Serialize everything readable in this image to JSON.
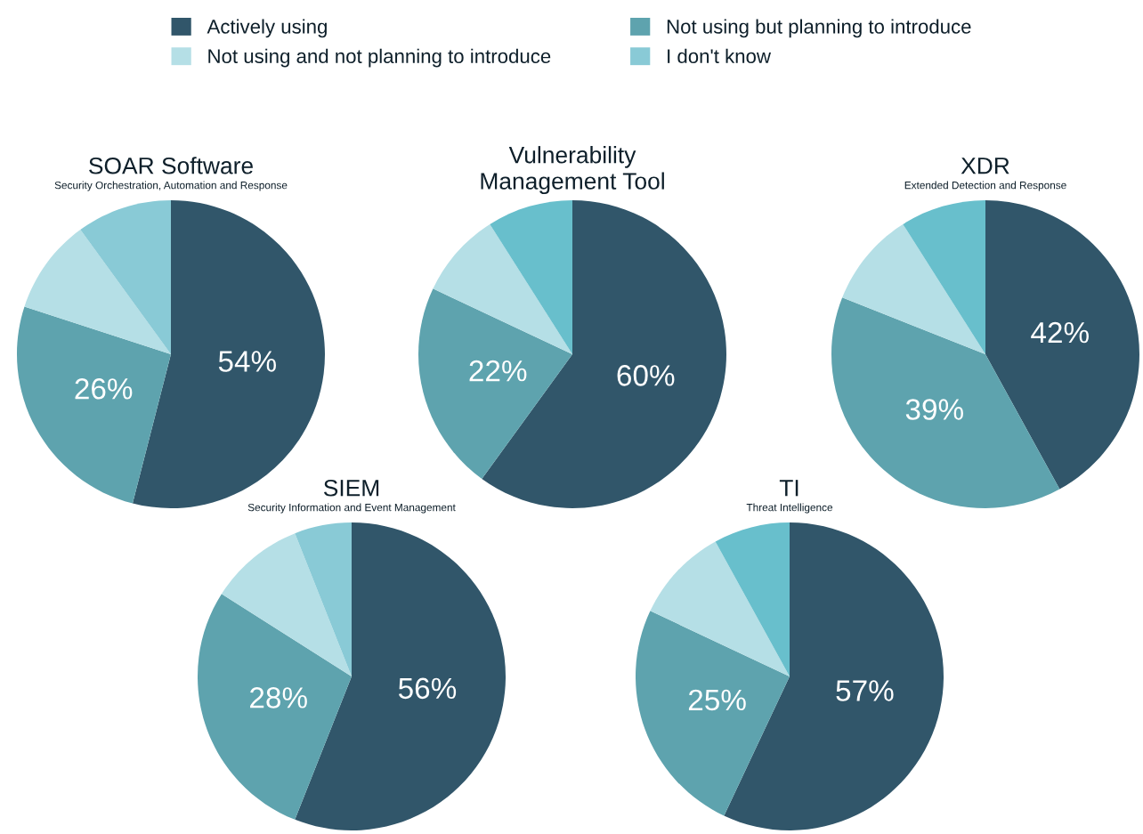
{
  "chart_data": [
    {
      "type": "pie",
      "title": "SOAR Software",
      "subtitle": "Security Orchestration, Automation and Response",
      "legend": "top",
      "categories": [
        "Actively using",
        "Not using but planning to introduce",
        "Not using and not planning to introduce",
        "I don't know"
      ],
      "values": [
        54,
        26,
        10,
        10
      ],
      "value_labels": [
        "54%",
        "26%",
        null,
        null
      ],
      "colors": [
        "#31566a",
        "#5ea3ae",
        "#b5dfe6",
        "#89cad6"
      ]
    },
    {
      "type": "pie",
      "title": "Vulnerability\nManagement Tool",
      "values": [
        60,
        22,
        9,
        9
      ],
      "value_labels": [
        "60%",
        "22%",
        null,
        null
      ],
      "colors": [
        "#31566a",
        "#5ea3ae",
        "#b5dfe6",
        "#68bfcc"
      ]
    },
    {
      "type": "pie",
      "title": "XDR",
      "subtitle": "Extended Detection and Response",
      "values": [
        42,
        39,
        10,
        9
      ],
      "value_labels": [
        "42%",
        "39%",
        null,
        null
      ],
      "colors": [
        "#31566a",
        "#5ea3ae",
        "#b5dfe6",
        "#68bfcc"
      ]
    },
    {
      "type": "pie",
      "title": "SIEM",
      "subtitle": "Security Information and Event Management",
      "values": [
        56,
        28,
        10,
        6
      ],
      "value_labels": [
        "56%",
        "28%",
        null,
        null
      ],
      "colors": [
        "#31566a",
        "#5ea3ae",
        "#b5dfe6",
        "#89cad6"
      ]
    },
    {
      "type": "pie",
      "title": "TI",
      "subtitle": "Threat Intelligence",
      "values": [
        57,
        25,
        10,
        8
      ],
      "value_labels": [
        "57%",
        "25%",
        null,
        null
      ],
      "colors": [
        "#31566a",
        "#5ea3ae",
        "#b5dfe6",
        "#68bfcc"
      ]
    }
  ]
}
